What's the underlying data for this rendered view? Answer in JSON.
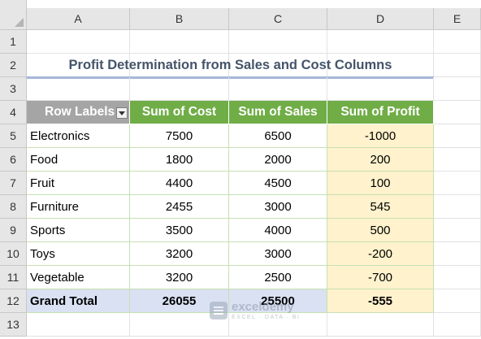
{
  "sheet": {
    "columns": [
      "A",
      "B",
      "C",
      "D",
      "E"
    ],
    "rows": [
      "1",
      "2",
      "3",
      "4",
      "5",
      "6",
      "7",
      "8",
      "9",
      "10",
      "11",
      "12",
      "13"
    ]
  },
  "title": "Profit Determination from Sales and Cost Columns",
  "pivot": {
    "headers": {
      "row_labels": "Row Labels",
      "sum_cost": "Sum of Cost",
      "sum_sales": "Sum of Sales",
      "sum_profit": "Sum of Profit"
    },
    "rows": [
      {
        "label": "Electronics",
        "cost": "7500",
        "sales": "6500",
        "profit": "-1000"
      },
      {
        "label": "Food",
        "cost": "1800",
        "sales": "2000",
        "profit": "200"
      },
      {
        "label": "Fruit",
        "cost": "4400",
        "sales": "4500",
        "profit": "100"
      },
      {
        "label": "Furniture",
        "cost": "2455",
        "sales": "3000",
        "profit": "545"
      },
      {
        "label": "Sports",
        "cost": "3500",
        "sales": "4000",
        "profit": "500"
      },
      {
        "label": "Toys",
        "cost": "3200",
        "sales": "3000",
        "profit": "-200"
      },
      {
        "label": "Vegetable",
        "cost": "3200",
        "sales": "2500",
        "profit": "-700"
      }
    ],
    "grand_total": {
      "label": "Grand Total",
      "cost": "26055",
      "sales": "25500",
      "profit": "-555"
    }
  },
  "watermark": {
    "name": "exceldemy",
    "tagline": "EXCEL · DATA · BI"
  },
  "colors": {
    "header_green": "#70ad47",
    "row_labels_gray": "#a5a5a5",
    "profit_fill": "#fff2cc",
    "total_fill": "#d9e1f2",
    "title_color": "#44546a"
  }
}
